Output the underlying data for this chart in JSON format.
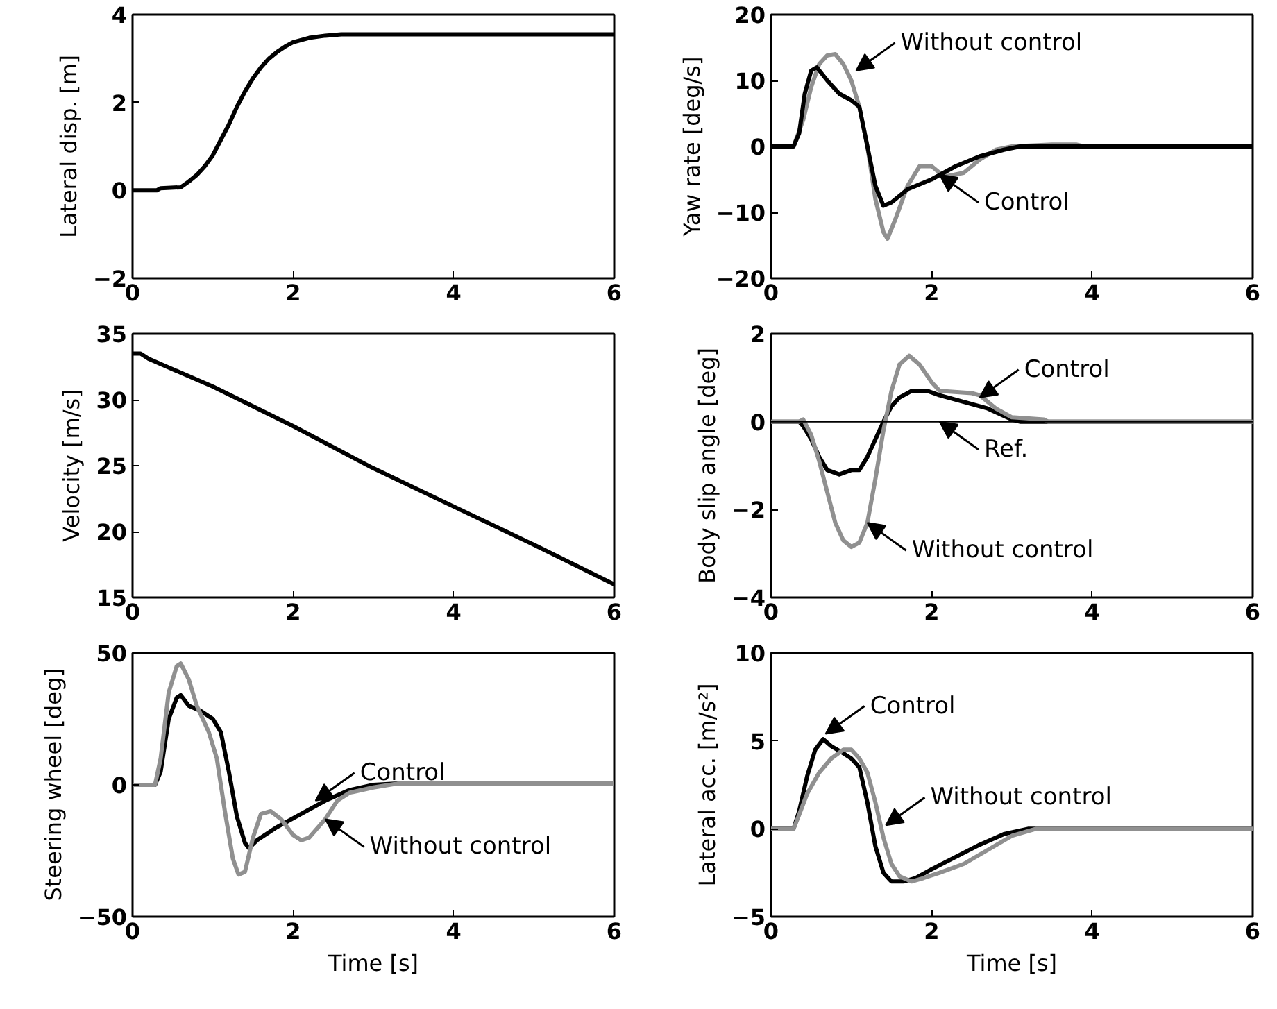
{
  "chart_data": [
    {
      "type": "line",
      "ylabel": "Lateral disp. [m]",
      "xlim": [
        0,
        6
      ],
      "xticks": [
        0,
        2,
        4,
        6
      ],
      "ylim": [
        -2,
        4
      ],
      "yticks": [
        -2,
        0,
        2,
        4
      ],
      "grid": false,
      "series": [
        {
          "color": "#000000",
          "x": [
            0,
            0.3,
            0.35,
            0.6,
            0.7,
            0.8,
            0.9,
            1.0,
            1.1,
            1.2,
            1.3,
            1.4,
            1.5,
            1.6,
            1.7,
            1.8,
            1.9,
            2.0,
            2.2,
            2.4,
            2.6,
            6
          ],
          "values": [
            0,
            0,
            0.05,
            0.07,
            0.2,
            0.35,
            0.55,
            0.8,
            1.15,
            1.5,
            1.9,
            2.25,
            2.55,
            2.8,
            3.0,
            3.15,
            3.27,
            3.37,
            3.47,
            3.52,
            3.55,
            3.55
          ]
        }
      ]
    },
    {
      "type": "line",
      "ylabel": "Yaw rate [deg/s]",
      "xlim": [
        0,
        6
      ],
      "xticks": [
        0,
        2,
        4,
        6
      ],
      "ylim": [
        -20,
        20
      ],
      "yticks": [
        -20,
        -10,
        0,
        10,
        20
      ],
      "grid": false,
      "series": [
        {
          "color": "#909090",
          "x": [
            0,
            0.28,
            0.4,
            0.5,
            0.6,
            0.7,
            0.8,
            0.9,
            1.0,
            1.1,
            1.2,
            1.3,
            1.4,
            1.45,
            1.55,
            1.7,
            1.85,
            2.0,
            2.1,
            2.2,
            2.4,
            2.6,
            2.8,
            3.0,
            3.5,
            3.8,
            3.9,
            6
          ],
          "values": [
            0,
            0,
            4,
            9,
            12.5,
            13.8,
            14,
            12.5,
            10,
            6,
            0,
            -8,
            -13,
            -14,
            -11,
            -6,
            -3,
            -3,
            -4,
            -4.5,
            -4,
            -2,
            -0.5,
            0,
            0.3,
            0.3,
            0,
            0
          ]
        },
        {
          "color": "#000000",
          "x": [
            0,
            0.28,
            0.35,
            0.42,
            0.5,
            0.57,
            0.7,
            0.85,
            1.0,
            1.1,
            1.2,
            1.3,
            1.4,
            1.5,
            1.7,
            2.0,
            2.3,
            2.6,
            2.9,
            3.1,
            6
          ],
          "values": [
            0,
            0,
            2,
            8,
            11.5,
            12,
            10,
            8,
            7,
            6,
            0,
            -6,
            -9,
            -8.5,
            -6.5,
            -5,
            -3,
            -1.5,
            -0.5,
            0,
            0
          ]
        }
      ],
      "annotations": [
        {
          "text": "Without control",
          "x": 1.06,
          "y": 11.5
        },
        {
          "text": "Control",
          "x": 2.1,
          "y": -4.3
        }
      ]
    },
    {
      "type": "line",
      "ylabel": "Velocity [m/s]",
      "xlim": [
        0,
        6
      ],
      "xticks": [
        0,
        2,
        4,
        6
      ],
      "ylim": [
        15,
        35
      ],
      "yticks": [
        15,
        20,
        25,
        30,
        35
      ],
      "grid": false,
      "series": [
        {
          "color": "#000000",
          "x": [
            0,
            0.1,
            0.2,
            1,
            2,
            3,
            4,
            5,
            6
          ],
          "values": [
            33.5,
            33.5,
            33.1,
            31,
            28,
            24.8,
            21.9,
            19,
            16
          ]
        }
      ]
    },
    {
      "type": "line",
      "ylabel": "Body slip angle [deg]",
      "xlim": [
        0,
        6
      ],
      "xticks": [
        0,
        2,
        4,
        6
      ],
      "ylim": [
        -4,
        2
      ],
      "yticks": [
        -4,
        -2,
        0,
        2
      ],
      "grid": false,
      "ref_lines": [
        {
          "axis": "y",
          "value": 0
        }
      ],
      "series": [
        {
          "color": "#000000",
          "x": [
            0,
            0.35,
            0.4,
            0.5,
            0.6,
            0.7,
            0.85,
            1.0,
            1.1,
            1.2,
            1.3,
            1.4,
            1.5,
            1.6,
            1.75,
            1.95,
            2.1,
            2.4,
            2.7,
            3.0,
            3.1,
            6
          ],
          "values": [
            0,
            0,
            -0.1,
            -0.4,
            -0.8,
            -1.1,
            -1.2,
            -1.1,
            -1.1,
            -0.8,
            -0.4,
            0,
            0.35,
            0.55,
            0.7,
            0.7,
            0.6,
            0.45,
            0.3,
            0.05,
            0,
            0
          ]
        },
        {
          "color": "#909090",
          "x": [
            0,
            0.35,
            0.4,
            0.5,
            0.6,
            0.7,
            0.8,
            0.9,
            1.0,
            1.1,
            1.2,
            1.3,
            1.4,
            1.5,
            1.6,
            1.72,
            1.85,
            2.0,
            2.1,
            2.5,
            2.6,
            2.8,
            3.0,
            3.4,
            3.45,
            6
          ],
          "values": [
            0,
            0,
            0.05,
            -0.3,
            -0.9,
            -1.6,
            -2.3,
            -2.7,
            -2.85,
            -2.75,
            -2.3,
            -1.3,
            -0.2,
            0.7,
            1.3,
            1.5,
            1.3,
            0.9,
            0.7,
            0.65,
            0.6,
            0.3,
            0.1,
            0.05,
            0,
            0
          ]
        }
      ],
      "annotations": [
        {
          "text": "Control",
          "x": 2.6,
          "y": 0.55
        },
        {
          "text": "Ref.",
          "x": 2.1,
          "y": 0
        },
        {
          "text": "Without control",
          "x": 1.2,
          "y": -2.3
        }
      ]
    },
    {
      "type": "line",
      "xlabel": "Time [s]",
      "ylabel": "Steering wheel [deg]",
      "xlim": [
        0,
        6
      ],
      "xticks": [
        0,
        2,
        4,
        6
      ],
      "ylim": [
        -50,
        50
      ],
      "yticks": [
        -50,
        0,
        50
      ],
      "grid": false,
      "series": [
        {
          "color": "#000000",
          "x": [
            0,
            0.28,
            0.35,
            0.45,
            0.55,
            0.6,
            0.7,
            0.85,
            1.0,
            1.1,
            1.2,
            1.3,
            1.4,
            1.45,
            1.55,
            1.8,
            2.1,
            2.4,
            2.7,
            3.0,
            3.3,
            6
          ],
          "values": [
            0,
            0,
            5,
            25,
            33,
            34,
            30,
            28,
            25,
            20,
            5,
            -12,
            -22,
            -24,
            -21,
            -16,
            -11,
            -6,
            -2,
            0,
            0.5,
            0.5
          ]
        },
        {
          "color": "#909090",
          "x": [
            0,
            0.28,
            0.35,
            0.45,
            0.55,
            0.6,
            0.7,
            0.8,
            0.95,
            1.05,
            1.15,
            1.25,
            1.32,
            1.4,
            1.5,
            1.6,
            1.72,
            1.85,
            2.0,
            2.1,
            2.2,
            2.4,
            2.55,
            2.7,
            3.0,
            3.3,
            6
          ],
          "values": [
            0,
            0,
            10,
            35,
            45,
            46,
            40,
            30,
            20,
            10,
            -10,
            -28,
            -34,
            -33,
            -20,
            -11,
            -10,
            -13,
            -19,
            -21,
            -20,
            -13,
            -6,
            -3,
            -1,
            0.5,
            0.5
          ]
        }
      ],
      "annotations": [
        {
          "text": "Control",
          "x": 2.28,
          "y": -6
        },
        {
          "text": "Without control",
          "x": 2.4,
          "y": -13
        }
      ]
    },
    {
      "type": "line",
      "xlabel": "Time [s]",
      "ylabel": "Lateral acc. [m/s²]",
      "xlim": [
        0,
        6
      ],
      "xticks": [
        0,
        2,
        4,
        6
      ],
      "ylim": [
        -5,
        10
      ],
      "yticks": [
        -5,
        0,
        5,
        10
      ],
      "grid": false,
      "series": [
        {
          "color": "#000000",
          "x": [
            0,
            0.28,
            0.35,
            0.45,
            0.55,
            0.65,
            0.75,
            0.9,
            1.0,
            1.1,
            1.2,
            1.3,
            1.4,
            1.5,
            1.65,
            1.8,
            2.0,
            2.3,
            2.6,
            2.9,
            3.2,
            6
          ],
          "values": [
            0,
            0,
            1,
            3,
            4.5,
            5.1,
            4.7,
            4.3,
            4.0,
            3.5,
            1.5,
            -1,
            -2.5,
            -3,
            -3,
            -2.8,
            -2.3,
            -1.6,
            -0.9,
            -0.3,
            0,
            0
          ]
        },
        {
          "color": "#909090",
          "x": [
            0,
            0.28,
            0.35,
            0.45,
            0.6,
            0.75,
            0.9,
            1.0,
            1.1,
            1.2,
            1.3,
            1.4,
            1.5,
            1.6,
            1.75,
            1.9,
            2.1,
            2.4,
            2.7,
            3.0,
            3.3,
            6
          ],
          "values": [
            0,
            0,
            0.8,
            2,
            3.2,
            4.0,
            4.5,
            4.5,
            4.0,
            3.2,
            1.5,
            -0.5,
            -2,
            -2.7,
            -3,
            -2.8,
            -2.5,
            -2,
            -1.2,
            -0.4,
            0,
            0
          ]
        }
      ],
      "annotations": [
        {
          "text": "Control",
          "x": 0.68,
          "y": 5.4
        },
        {
          "text": "Without control",
          "x": 1.43,
          "y": 0.2
        }
      ]
    }
  ]
}
